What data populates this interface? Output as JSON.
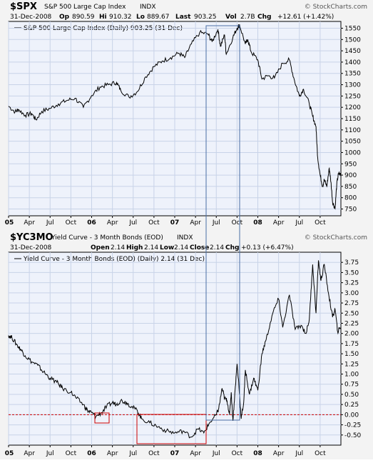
{
  "site": "© StockCharts.com",
  "time_labels": [
    {
      "label": "05",
      "bold": true,
      "t": 0
    },
    {
      "label": "Apr",
      "bold": false,
      "t": 0.25
    },
    {
      "label": "Jul",
      "bold": false,
      "t": 0.5
    },
    {
      "label": "Oct",
      "bold": false,
      "t": 0.75
    },
    {
      "label": "06",
      "bold": true,
      "t": 1
    },
    {
      "label": "Apr",
      "bold": false,
      "t": 1.25
    },
    {
      "label": "Jul",
      "bold": false,
      "t": 1.5
    },
    {
      "label": "Oct",
      "bold": false,
      "t": 1.75
    },
    {
      "label": "07",
      "bold": true,
      "t": 2
    },
    {
      "label": "Apr",
      "bold": false,
      "t": 2.25
    },
    {
      "label": "Jul",
      "bold": false,
      "t": 2.5
    },
    {
      "label": "Oct",
      "bold": false,
      "t": 2.75
    },
    {
      "label": "08",
      "bold": true,
      "t": 3
    },
    {
      "label": "Apr",
      "bold": false,
      "t": 3.25
    },
    {
      "label": "Jul",
      "bold": false,
      "t": 3.5
    },
    {
      "label": "Oct",
      "bold": false,
      "t": 3.75
    }
  ],
  "chart_data": [
    {
      "type": "line",
      "symbol": "$SPX",
      "name": "S&P 500 Large Cap Index",
      "exchange": "INDX",
      "date": "31-Dec-2008",
      "quote": {
        "open_label": "Op",
        "open": "890.59",
        "high_label": "Hi",
        "high": "910.32",
        "low_label": "Lo",
        "low": "889.67",
        "last_label": "Last",
        "last": "903.25",
        "vol_label": "Vol",
        "vol": "2.7B",
        "chg_label": "Chg",
        "chg": "+12.61 (+1.42%)"
      },
      "legend": "S&P 500 Large Cap Index (Daily) 903.25 (31 Dec)",
      "ylim": [
        720,
        1580
      ],
      "yticks": [
        "750",
        "800",
        "850",
        "900",
        "950",
        "1000",
        "1050",
        "1100",
        "1150",
        "1200",
        "1250",
        "1300",
        "1350",
        "1400",
        "1450",
        "1500",
        "1550"
      ],
      "x": [
        0,
        0.08,
        0.12,
        0.2,
        0.28,
        0.33,
        0.4,
        0.5,
        0.6,
        0.7,
        0.8,
        0.9,
        1.0,
        1.1,
        1.2,
        1.3,
        1.35,
        1.45,
        1.55,
        1.65,
        1.75,
        1.85,
        1.95,
        2.05,
        2.12,
        2.2,
        2.3,
        2.4,
        2.45,
        2.52,
        2.55,
        2.6,
        2.62,
        2.7,
        2.75,
        2.78,
        2.85,
        2.88,
        2.92,
        3.0,
        3.05,
        3.12,
        3.2,
        3.3,
        3.38,
        3.44,
        3.5,
        3.55,
        3.62,
        3.66,
        3.7,
        3.72,
        3.75,
        3.78,
        3.8,
        3.83,
        3.86,
        3.88,
        3.9,
        3.93,
        3.95,
        3.97,
        4.0
      ],
      "values": [
        1205,
        1180,
        1190,
        1165,
        1172,
        1145,
        1182,
        1195,
        1215,
        1230,
        1240,
        1200,
        1252,
        1290,
        1300,
        1310,
        1275,
        1245,
        1270,
        1335,
        1380,
        1405,
        1420,
        1440,
        1420,
        1480,
        1530,
        1525,
        1490,
        1545,
        1470,
        1520,
        1435,
        1510,
        1550,
        1565,
        1480,
        1500,
        1445,
        1410,
        1325,
        1340,
        1330,
        1395,
        1410,
        1320,
        1250,
        1280,
        1215,
        1160,
        1115,
        980,
        900,
        850,
        880,
        850,
        930,
        870,
        780,
        752,
        860,
        905,
        903
      ]
    },
    {
      "type": "line",
      "symbol": "$YC3MO",
      "name": "Yield Curve - 3 Month Bonds (EOD)",
      "exchange": "INDX",
      "date": "31-Dec-2008",
      "quote": {
        "open_label": "Open",
        "open": "2.14",
        "high_label": "High",
        "high": "2.14",
        "low_label": "Low",
        "low": "2.14",
        "close_label": "Close",
        "close": "2.14",
        "chg_label": "Chg",
        "chg": "+0.13 (+6.47%)"
      },
      "legend": "Yield Curve - 3 Month Bonds (EOD) (Daily) 2.14 (31 Dec)",
      "ylim": [
        -0.75,
        4.0
      ],
      "yticks": [
        "-0.50",
        "-0.25",
        "0.00",
        "0.25",
        "0.50",
        "0.75",
        "1.00",
        "1.25",
        "1.50",
        "1.75",
        "2.00",
        "2.25",
        "2.50",
        "2.75",
        "3.00",
        "3.25",
        "3.50",
        "3.75"
      ],
      "zero_line": 0,
      "x": [
        0,
        0.04,
        0.1,
        0.15,
        0.2,
        0.28,
        0.35,
        0.42,
        0.5,
        0.58,
        0.65,
        0.75,
        0.82,
        0.9,
        0.95,
        1.0,
        1.05,
        1.12,
        1.18,
        1.25,
        1.3,
        1.35,
        1.42,
        1.48,
        1.55,
        1.6,
        1.7,
        1.8,
        1.9,
        2.0,
        2.1,
        2.2,
        2.28,
        2.35,
        2.42,
        2.5,
        2.53,
        2.57,
        2.6,
        2.63,
        2.66,
        2.68,
        2.7,
        2.73,
        2.75,
        2.77,
        2.8,
        2.83,
        2.85,
        2.9,
        2.95,
        3.0,
        3.05,
        3.1,
        3.18,
        3.25,
        3.3,
        3.38,
        3.45,
        3.52,
        3.58,
        3.62,
        3.66,
        3.7,
        3.73,
        3.76,
        3.8,
        3.85,
        3.9,
        3.93,
        3.96,
        4.0
      ],
      "values": [
        1.95,
        1.9,
        1.72,
        1.6,
        1.45,
        1.3,
        1.22,
        1.05,
        0.9,
        0.8,
        0.65,
        0.55,
        0.4,
        0.25,
        0.1,
        0.05,
        -0.05,
        0.05,
        0.2,
        0.3,
        0.25,
        0.35,
        0.3,
        0.2,
        0.1,
        -0.1,
        -0.2,
        -0.3,
        -0.4,
        -0.45,
        -0.4,
        -0.55,
        -0.35,
        -0.45,
        -0.2,
        0.0,
        0.15,
        0.65,
        0.4,
        0.35,
        0.0,
        0.55,
        -0.15,
        0.7,
        1.25,
        0.8,
        -0.1,
        0.3,
        1.1,
        0.5,
        0.9,
        0.6,
        1.5,
        1.85,
        2.5,
        2.85,
        2.15,
        2.95,
        2.1,
        2.2,
        2.0,
        2.35,
        3.7,
        2.5,
        3.8,
        3.3,
        3.7,
        3.0,
        2.4,
        2.6,
        2.05,
        2.14
      ]
    }
  ]
}
